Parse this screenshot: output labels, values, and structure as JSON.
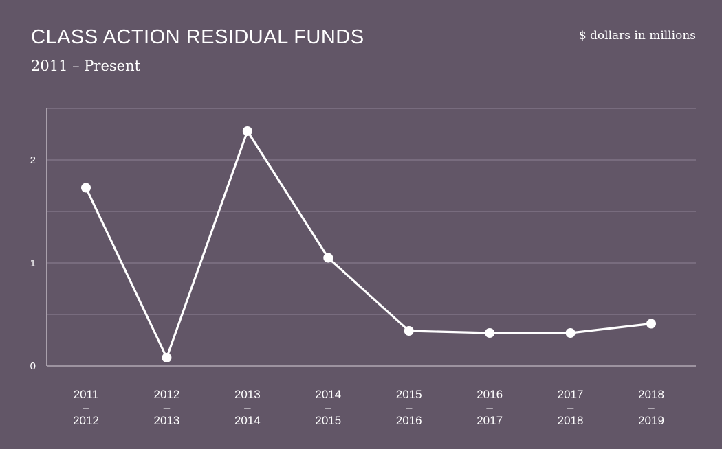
{
  "header": {
    "title": "CLASS ACTION RESIDUAL FUNDS",
    "subtitle": "2011 – Present",
    "units": "$ dollars in millions"
  },
  "chart_data": {
    "type": "line",
    "title": "CLASS ACTION RESIDUAL FUNDS",
    "subtitle": "2011 – Present",
    "ylabel": "$ dollars in millions",
    "categories": [
      [
        "2011",
        "–",
        "2012"
      ],
      [
        "2012",
        "–",
        "2013"
      ],
      [
        "2013",
        "–",
        "2014"
      ],
      [
        "2014",
        "–",
        "2015"
      ],
      [
        "2015",
        "–",
        "2016"
      ],
      [
        "2016",
        "–",
        "2017"
      ],
      [
        "2017",
        "–",
        "2018"
      ],
      [
        "2018",
        "–",
        "2019"
      ]
    ],
    "values": [
      1.73,
      0.08,
      2.28,
      1.05,
      0.34,
      0.32,
      0.32,
      0.41
    ],
    "ylim": [
      0,
      2.5
    ],
    "yticks": [
      0,
      1,
      2
    ],
    "grid": true,
    "colors": {
      "line": "#ffffff",
      "grid": "#8f8394",
      "axis": "#d8d0da",
      "background": "#625667"
    }
  }
}
